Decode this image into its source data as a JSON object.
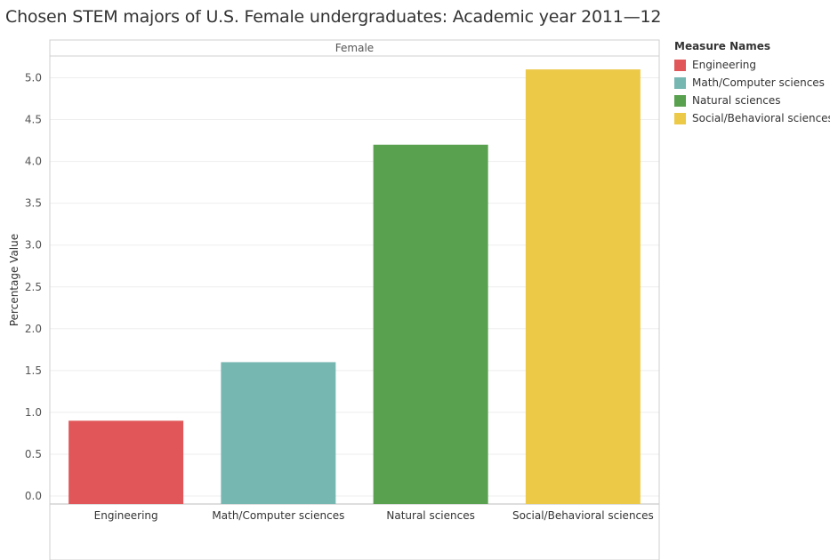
{
  "title": "Chosen STEM majors of U.S. Female undergraduates: Academic year 2011—12",
  "chart_data": {
    "type": "bar",
    "panel_header": "Female",
    "categories": [
      "Engineering",
      "Math/Computer sciences",
      "Natural sciences",
      "Social/Behavioral sciences"
    ],
    "values": [
      0.9,
      1.6,
      4.2,
      5.1
    ],
    "colors": [
      "#e15759",
      "#76b7b2",
      "#59a14f",
      "#edc948"
    ],
    "ylabel": "Percentage Value",
    "xlabel": "",
    "ylim": [
      0,
      5.4
    ],
    "yticks": [
      "0.0",
      "0.5",
      "1.0",
      "1.5",
      "2.0",
      "2.5",
      "3.0",
      "3.5",
      "4.0",
      "4.5",
      "5.0"
    ],
    "grid": true,
    "legend": {
      "title": "Measure Names",
      "position": "right",
      "items": [
        "Engineering",
        "Math/Computer sciences",
        "Natural sciences",
        "Social/Behavioral sciences"
      ]
    }
  }
}
